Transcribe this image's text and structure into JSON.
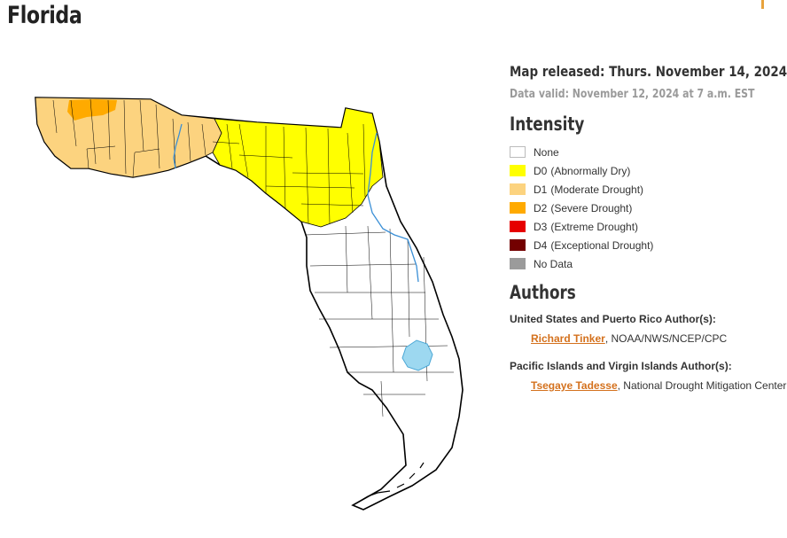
{
  "title": "Florida",
  "map_released": "Map released: Thurs. November 14, 2024",
  "data_valid": "Data valid: November 12, 2024 at 7 a.m. EST",
  "legend": {
    "title": "Intensity",
    "items": [
      {
        "code": "",
        "label": "None",
        "color": "#ffffff"
      },
      {
        "code": "D0",
        "label": "(Abnormally Dry)",
        "color": "#ffff00"
      },
      {
        "code": "D1",
        "label": "(Moderate Drought)",
        "color": "#fcd37f"
      },
      {
        "code": "D2",
        "label": "(Severe Drought)",
        "color": "#ffaa00"
      },
      {
        "code": "D3",
        "label": "(Extreme Drought)",
        "color": "#e60000"
      },
      {
        "code": "D4",
        "label": "(Exceptional Drought)",
        "color": "#730000"
      },
      {
        "code": "",
        "label": "No Data",
        "color": "#9b9b9b"
      }
    ]
  },
  "authors": {
    "title": "Authors",
    "groups": [
      {
        "heading": "United States and Puerto Rico Author(s):",
        "name": "Richard Tinker",
        "affiliation": ", NOAA/NWS/NCEP/CPC"
      },
      {
        "heading": "Pacific Islands and Virgin Islands Author(s):",
        "name": "Tsegaye Tadesse",
        "affiliation": ", National Drought Mitigation Center"
      }
    ]
  },
  "map_colors": {
    "d1": "#fcd37f",
    "d2": "#ffaa00",
    "d0": "#ffff00",
    "none": "#ffffff",
    "water": "#9dd8f0",
    "river": "#3a8fd6"
  }
}
